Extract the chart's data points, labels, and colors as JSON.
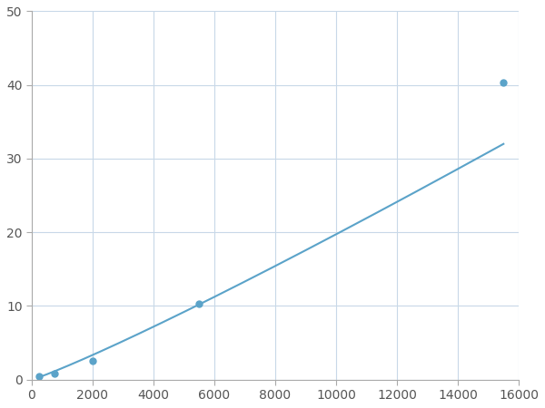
{
  "x": [
    250,
    750,
    2000,
    5500,
    15500
  ],
  "y": [
    0.5,
    0.8,
    2.5,
    10.3,
    40.3
  ],
  "line_color": "#5ba3c9",
  "marker_color": "#5ba3c9",
  "marker_size": 5,
  "marker_style": "o",
  "line_width": 1.5,
  "xlim": [
    0,
    16000
  ],
  "ylim": [
    0,
    50
  ],
  "xticks": [
    0,
    2000,
    4000,
    6000,
    8000,
    10000,
    12000,
    14000,
    16000
  ],
  "yticks": [
    0,
    10,
    20,
    30,
    40,
    50
  ],
  "grid_color": "#c8d8e8",
  "background_color": "#ffffff",
  "tick_label_color": "#555555",
  "tick_label_size": 10
}
